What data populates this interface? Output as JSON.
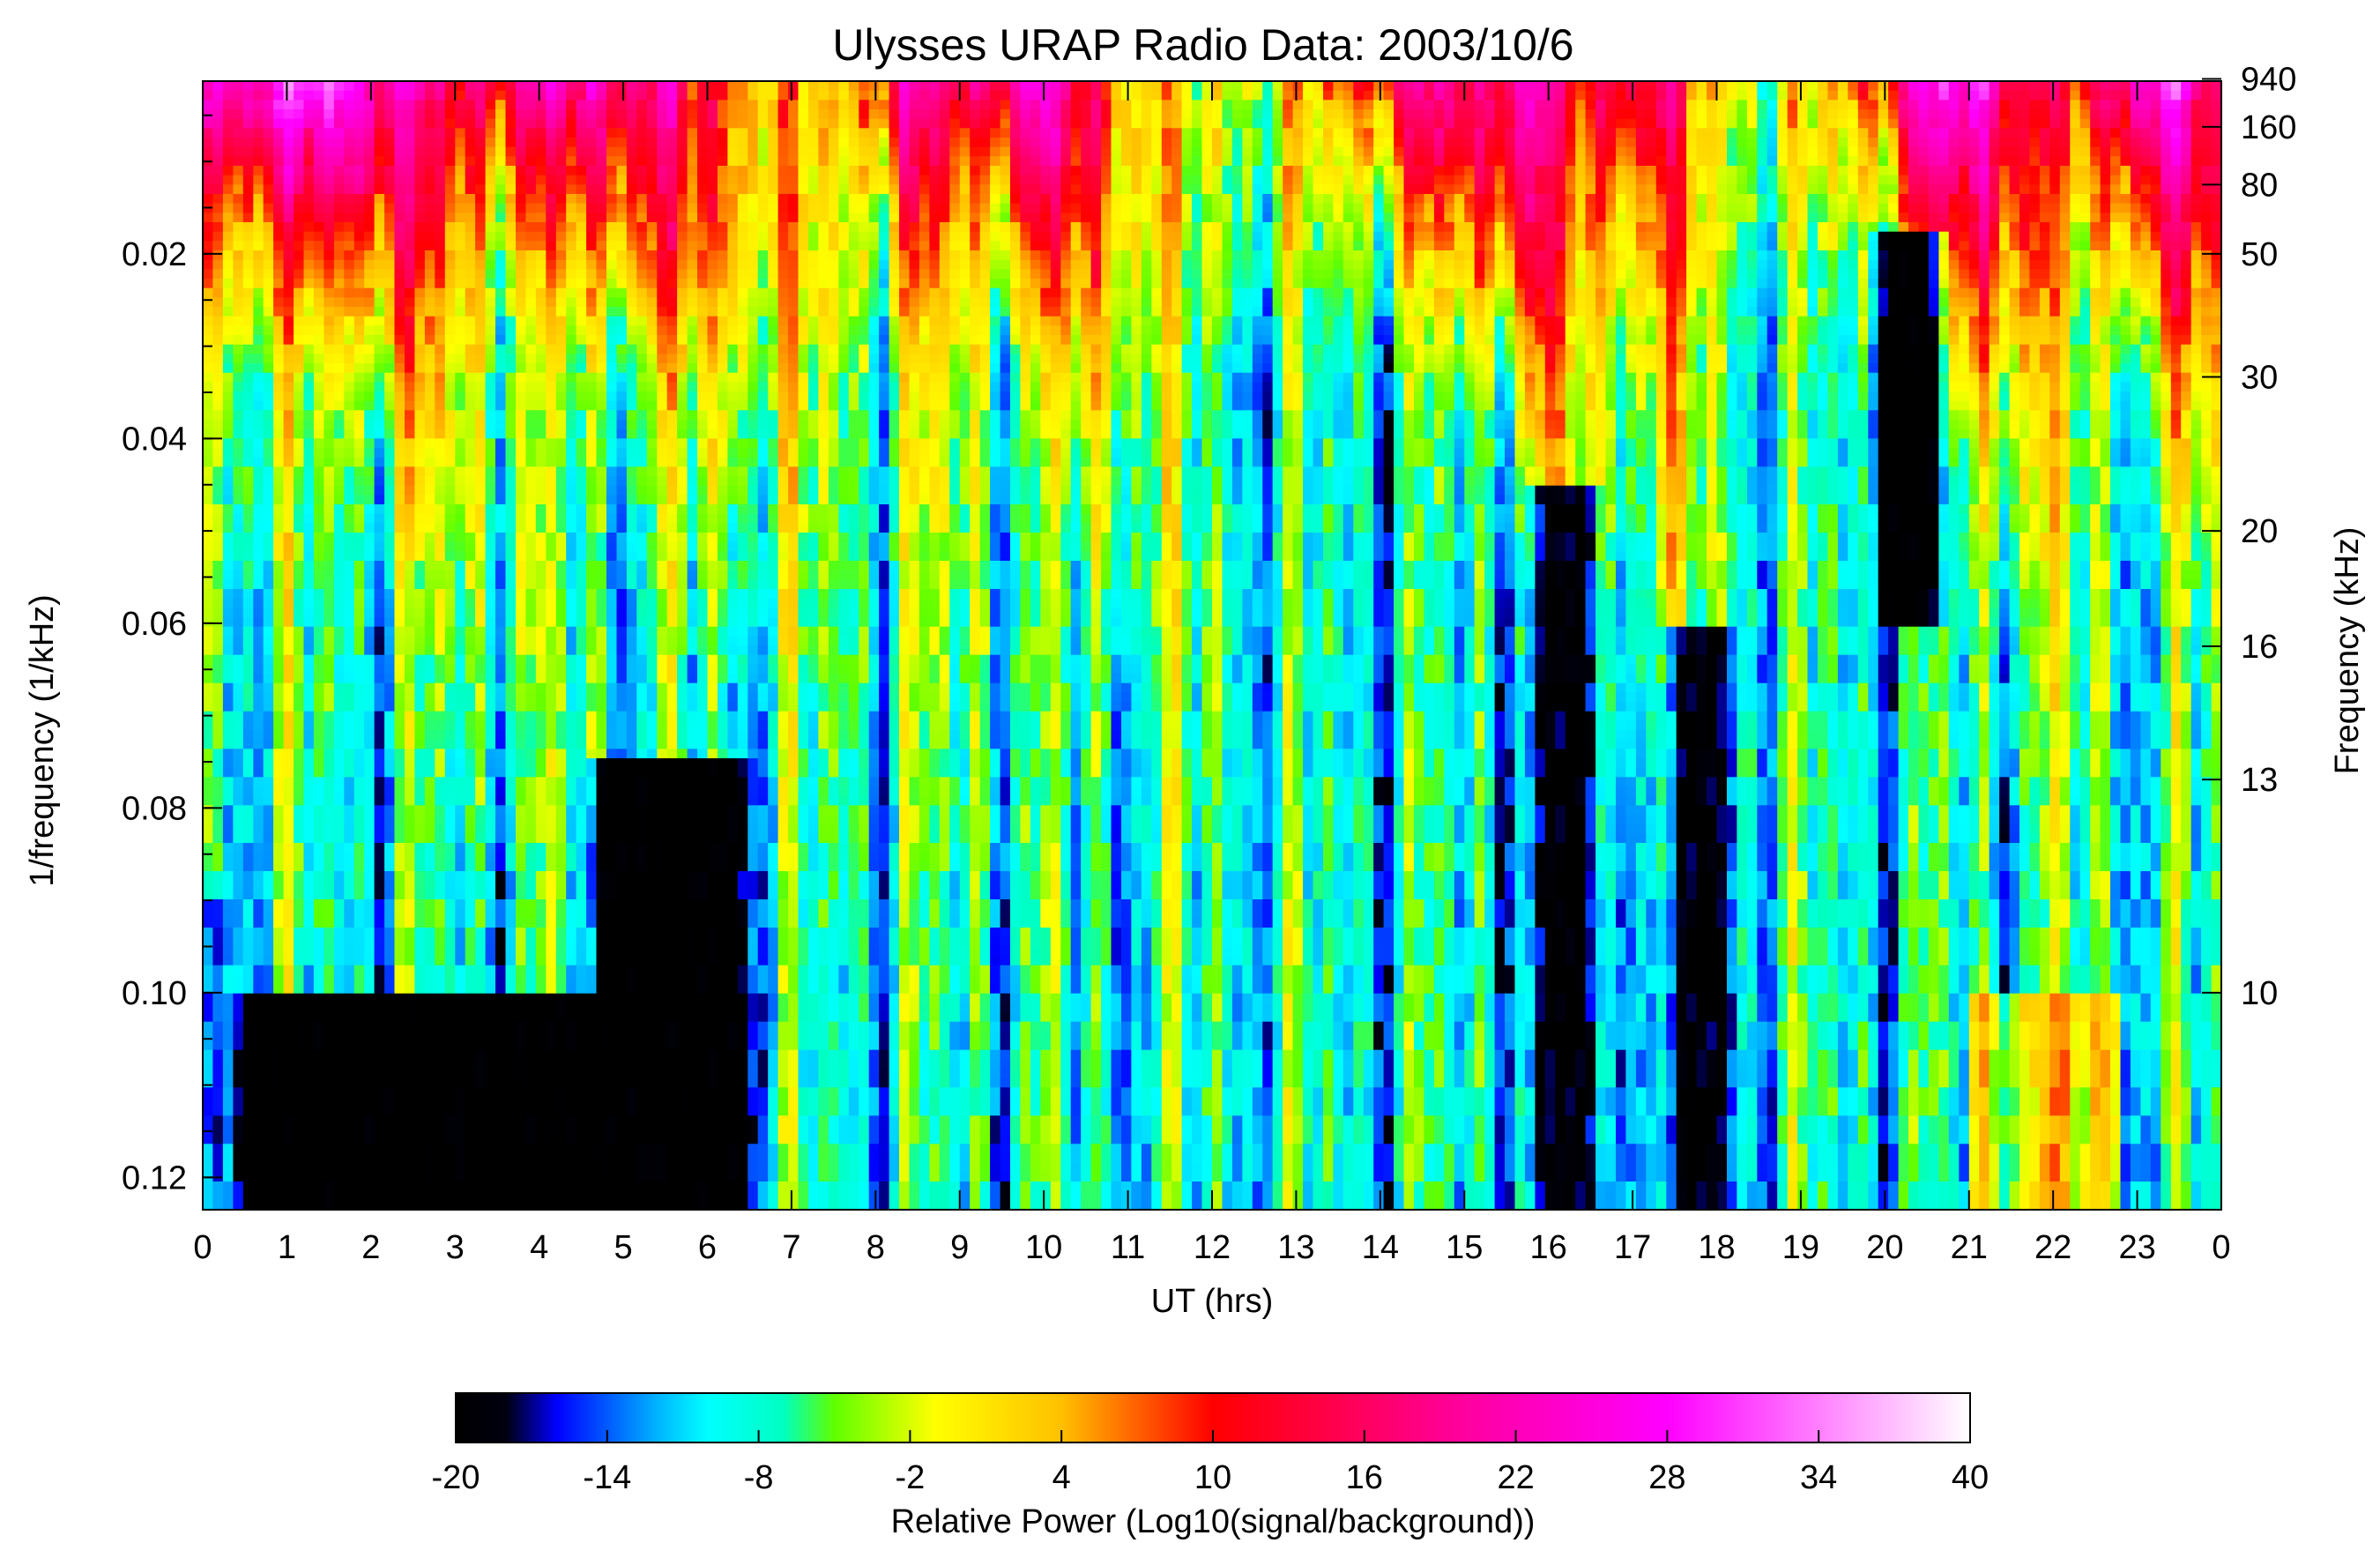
{
  "chart_data": {
    "type": "heatmap",
    "title": "Ulysses URAP Radio Data: 2003/10/6",
    "xlabel": "UT (hrs)",
    "ylabel_left": "1/frequency (1/kHz)",
    "ylabel_right": "Frequency (kHz)",
    "x_ticks": [
      "0",
      "1",
      "2",
      "3",
      "4",
      "5",
      "6",
      "7",
      "8",
      "9",
      "10",
      "11",
      "12",
      "13",
      "14",
      "15",
      "16",
      "17",
      "18",
      "19",
      "20",
      "21",
      "22",
      "23",
      "0"
    ],
    "x_range_hours": [
      0,
      24
    ],
    "y_left_ticks": [
      "0.02",
      "0.04",
      "0.06",
      "0.08",
      "0.10",
      "0.12"
    ],
    "y_left_tick_values": [
      0.02,
      0.04,
      0.06,
      0.08,
      0.1,
      0.12
    ],
    "y_range_inverse_khz": [
      0.0013,
      0.1235
    ],
    "y_right_ticks": [
      "940",
      "160",
      "80",
      "50",
      "30",
      "20",
      "16",
      "13",
      "10"
    ],
    "y_right_tick_values_khz": [
      940,
      160,
      80,
      50,
      30,
      20,
      16,
      13,
      10
    ],
    "colorbar": {
      "label": "Relative Power (Log10(signal/background))",
      "ticks": [
        "-20",
        "-14",
        "-8",
        "-2",
        "4",
        "10",
        "16",
        "22",
        "28",
        "34",
        "40"
      ],
      "range": [
        -20,
        40
      ],
      "stops": [
        {
          "value": -20,
          "color": "#000000"
        },
        {
          "value": -18,
          "color": "#000010"
        },
        {
          "value": -16,
          "color": "#0000ff"
        },
        {
          "value": -12,
          "color": "#00b4ff"
        },
        {
          "value": -10,
          "color": "#00ffff"
        },
        {
          "value": -7,
          "color": "#00ffc0"
        },
        {
          "value": -5,
          "color": "#60ff00"
        },
        {
          "value": -1,
          "color": "#ffff00"
        },
        {
          "value": 4,
          "color": "#ffc000"
        },
        {
          "value": 8,
          "color": "#ff4000"
        },
        {
          "value": 10,
          "color": "#ff0000"
        },
        {
          "value": 20,
          "color": "#ff00a0"
        },
        {
          "value": 28,
          "color": "#ff00ff"
        },
        {
          "value": 40,
          "color": "#ffffff"
        }
      ]
    },
    "bursts": [
      {
        "t": 0.0,
        "strength": 18,
        "width": 1.0,
        "drift": 0.4
      },
      {
        "t": 1.5,
        "strength": 30,
        "width": 1.2,
        "drift": 1.2
      },
      {
        "t": 4.5,
        "strength": 24,
        "width": 1.8,
        "drift": 2.0
      },
      {
        "t": 8.3,
        "strength": 18,
        "width": 0.6,
        "drift": 0.6
      },
      {
        "t": 9.8,
        "strength": 26,
        "width": 1.0,
        "drift": 1.0
      },
      {
        "t": 14.6,
        "strength": 20,
        "width": 1.2,
        "drift": 1.6
      },
      {
        "t": 15.7,
        "strength": 16,
        "width": 0.4,
        "drift": 0.3
      },
      {
        "t": 17.0,
        "strength": 20,
        "width": 0.7,
        "drift": 0.5
      },
      {
        "t": 20.4,
        "strength": 22,
        "width": 0.8,
        "drift": 0.8
      },
      {
        "t": 21.3,
        "strength": 20,
        "width": 0.7,
        "drift": 0.5
      },
      {
        "t": 23.2,
        "strength": 30,
        "width": 0.9,
        "drift": 0.7
      }
    ],
    "quiet_regions": [
      {
        "t0": 0.3,
        "t1": 6.6,
        "y0": 0.1,
        "level": -20
      },
      {
        "t0": 4.5,
        "t1": 6.6,
        "y0": 0.075,
        "level": -20
      },
      {
        "t0": 15.7,
        "t1": 16.7,
        "y0": 0.045,
        "level": -18
      },
      {
        "t0": 17.3,
        "t1": 18.3,
        "y0": 0.06,
        "level": -18
      },
      {
        "t0": 19.8,
        "t1": 20.8,
        "y0": 0.018,
        "y1": 0.06,
        "level": -20
      }
    ]
  }
}
